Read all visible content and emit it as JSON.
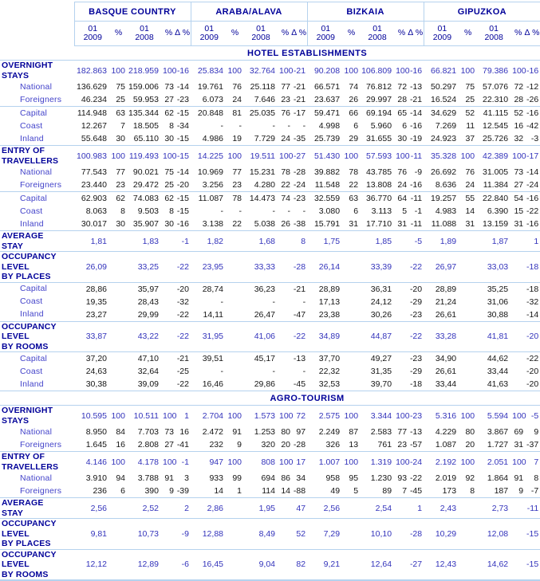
{
  "table": {
    "groups": [
      "BASQUE COUNTRY",
      "ARABA/ALAVA",
      "BIZKAIA",
      "GIPUZKOA"
    ],
    "period_cols": [
      "01\n2009",
      "%",
      "01\n2008",
      "%",
      "∆ %"
    ],
    "accent_colors": {
      "header_navy": "#000099",
      "section_blue": "#3333BB",
      "sublabel_blue": "#4343CA",
      "data_black": "#141414",
      "rule_light_blue": "#B5D2EE"
    },
    "rows": [
      {
        "type": "band",
        "label": "HOTEL ESTABLISHMENTS"
      },
      {
        "type": "sec",
        "label": "OVERNIGHT\nSTAYS",
        "values": [
          "182.863",
          "100",
          "218.959",
          "100",
          "-16",
          "25.834",
          "100",
          "32.764",
          "100",
          "-21",
          "90.208",
          "100",
          "106.809",
          "100",
          "-16",
          "66.821",
          "100",
          "79.386",
          "100",
          "-16"
        ]
      },
      {
        "type": "sub",
        "label": "National",
        "values": [
          "136.629",
          "75",
          "159.006",
          "73",
          "-14",
          "19.761",
          "76",
          "25.118",
          "77",
          "-21",
          "66.571",
          "74",
          "76.812",
          "72",
          "-13",
          "50.297",
          "75",
          "57.076",
          "72",
          "-12"
        ]
      },
      {
        "type": "sub",
        "label": "Foreigners",
        "sep": true,
        "values": [
          "46.234",
          "25",
          "59.953",
          "27",
          "-23",
          "6.073",
          "24",
          "7.646",
          "23",
          "-21",
          "23.637",
          "26",
          "29.997",
          "28",
          "-21",
          "16.524",
          "25",
          "22.310",
          "28",
          "-26"
        ]
      },
      {
        "type": "sub",
        "label": "Capital",
        "values": [
          "114.948",
          "63",
          "135.344",
          "62",
          "-15",
          "20.848",
          "81",
          "25.035",
          "76",
          "-17",
          "59.471",
          "66",
          "69.194",
          "65",
          "-14",
          "34.629",
          "52",
          "41.115",
          "52",
          "-16"
        ]
      },
      {
        "type": "sub",
        "label": "Coast",
        "values": [
          "12.267",
          "7",
          "18.505",
          "8",
          "-34",
          "-",
          "-",
          "-",
          "-",
          "-",
          "4.998",
          "6",
          "5.960",
          "6",
          "-16",
          "7.269",
          "11",
          "12.545",
          "16",
          "-42"
        ]
      },
      {
        "type": "sub",
        "label": "Inland",
        "sep": true,
        "values": [
          "55.648",
          "30",
          "65.110",
          "30",
          "-15",
          "4.986",
          "19",
          "7.729",
          "24",
          "-35",
          "25.739",
          "29",
          "31.655",
          "30",
          "-19",
          "24.923",
          "37",
          "25.726",
          "32",
          "-3"
        ]
      },
      {
        "type": "sec",
        "label": "ENTRY OF\nTRAVELLERS",
        "values": [
          "100.983",
          "100",
          "119.493",
          "100",
          "-15",
          "14.225",
          "100",
          "19.511",
          "100",
          "-27",
          "51.430",
          "100",
          "57.593",
          "100",
          "-11",
          "35.328",
          "100",
          "42.389",
          "100",
          "-17"
        ]
      },
      {
        "type": "sub",
        "label": "National",
        "values": [
          "77.543",
          "77",
          "90.021",
          "75",
          "-14",
          "10.969",
          "77",
          "15.231",
          "78",
          "-28",
          "39.882",
          "78",
          "43.785",
          "76",
          "-9",
          "26.692",
          "76",
          "31.005",
          "73",
          "-14"
        ]
      },
      {
        "type": "sub",
        "label": "Foreigners",
        "sep": true,
        "values": [
          "23.440",
          "23",
          "29.472",
          "25",
          "-20",
          "3.256",
          "23",
          "4.280",
          "22",
          "-24",
          "11.548",
          "22",
          "13.808",
          "24",
          "-16",
          "8.636",
          "24",
          "11.384",
          "27",
          "-24"
        ]
      },
      {
        "type": "sub",
        "label": "Capital",
        "values": [
          "62.903",
          "62",
          "74.083",
          "62",
          "-15",
          "11.087",
          "78",
          "14.473",
          "74",
          "-23",
          "32.559",
          "63",
          "36.770",
          "64",
          "-11",
          "19.257",
          "55",
          "22.840",
          "54",
          "-16"
        ]
      },
      {
        "type": "sub",
        "label": "Coast",
        "values": [
          "8.063",
          "8",
          "9.503",
          "8",
          "-15",
          "-",
          "-",
          "-",
          "-",
          "-",
          "3.080",
          "6",
          "3.113",
          "5",
          "-1",
          "4.983",
          "14",
          "6.390",
          "15",
          "-22"
        ]
      },
      {
        "type": "sub",
        "label": "Inland",
        "sep": true,
        "values": [
          "30.017",
          "30",
          "35.907",
          "30",
          "-16",
          "3.138",
          "22",
          "5.038",
          "26",
          "-38",
          "15.791",
          "31",
          "17.710",
          "31",
          "-11",
          "11.088",
          "31",
          "13.159",
          "31",
          "-16"
        ]
      },
      {
        "type": "sec",
        "label": "AVERAGE\nSTAY",
        "sep": true,
        "values": [
          "1,81",
          "",
          "1,83",
          "",
          "-1",
          "1,82",
          "",
          "1,68",
          "",
          "8",
          "1,75",
          "",
          "1,85",
          "",
          "-5",
          "1,89",
          "",
          "1,87",
          "",
          "1"
        ]
      },
      {
        "type": "sec",
        "label": "OCCUPANCY\nLEVEL\nBY PLACES",
        "sep": true,
        "values": [
          "26,09",
          "",
          "33,25",
          "",
          "-22",
          "23,95",
          "",
          "33,33",
          "",
          "-28",
          "26,14",
          "",
          "33,39",
          "",
          "-22",
          "26,97",
          "",
          "33,03",
          "",
          "-18"
        ]
      },
      {
        "type": "sub",
        "label": "Capital",
        "values": [
          "28,86",
          "",
          "35,97",
          "",
          "-20",
          "28,74",
          "",
          "36,23",
          "",
          "-21",
          "28,89",
          "",
          "36,31",
          "",
          "-20",
          "28,89",
          "",
          "35,25",
          "",
          "-18"
        ]
      },
      {
        "type": "sub",
        "label": "Coast",
        "values": [
          "19,35",
          "",
          "28,43",
          "",
          "-32",
          "-",
          "",
          "-",
          "",
          "-",
          "17,13",
          "",
          "24,12",
          "",
          "-29",
          "21,24",
          "",
          "31,06",
          "",
          "-32"
        ]
      },
      {
        "type": "sub",
        "label": "Inland",
        "sep": true,
        "values": [
          "23,27",
          "",
          "29,99",
          "",
          "-22",
          "14,11",
          "",
          "26,47",
          "",
          "-47",
          "23,38",
          "",
          "30,26",
          "",
          "-23",
          "26,61",
          "",
          "30,88",
          "",
          "-14"
        ]
      },
      {
        "type": "sec",
        "label": "OCCUPANCY\nLEVEL\nBY ROOMS",
        "sep": true,
        "values": [
          "33,87",
          "",
          "43,22",
          "",
          "-22",
          "31,95",
          "",
          "41,06",
          "",
          "-22",
          "34,89",
          "",
          "44,87",
          "",
          "-22",
          "33,28",
          "",
          "41,81",
          "",
          "-20"
        ]
      },
      {
        "type": "sub",
        "label": "Capital",
        "values": [
          "37,20",
          "",
          "47,10",
          "",
          "-21",
          "39,51",
          "",
          "45,17",
          "",
          "-13",
          "37,70",
          "",
          "49,27",
          "",
          "-23",
          "34,90",
          "",
          "44,62",
          "",
          "-22"
        ]
      },
      {
        "type": "sub",
        "label": "Coast",
        "values": [
          "24,63",
          "",
          "32,64",
          "",
          "-25",
          "-",
          "",
          "-",
          "",
          "-",
          "22,32",
          "",
          "31,35",
          "",
          "-29",
          "26,61",
          "",
          "33,44",
          "",
          "-20"
        ]
      },
      {
        "type": "sub",
        "label": "Inland",
        "sep": true,
        "values": [
          "30,38",
          "",
          "39,09",
          "",
          "-22",
          "16,46",
          "",
          "29,86",
          "",
          "-45",
          "32,53",
          "",
          "39,70",
          "",
          "-18",
          "33,44",
          "",
          "41,63",
          "",
          "-20"
        ]
      },
      {
        "type": "band",
        "label": "AGRO-TOURISM"
      },
      {
        "type": "sec",
        "label": "OVERNIGHT\nSTAYS",
        "values": [
          "10.595",
          "100",
          "10.511",
          "100",
          "1",
          "2.704",
          "100",
          "1.573",
          "100",
          "72",
          "2.575",
          "100",
          "3.344",
          "100",
          "-23",
          "5.316",
          "100",
          "5.594",
          "100",
          "-5"
        ]
      },
      {
        "type": "sub",
        "label": "National",
        "values": [
          "8.950",
          "84",
          "7.703",
          "73",
          "16",
          "2.472",
          "91",
          "1.253",
          "80",
          "97",
          "2.249",
          "87",
          "2.583",
          "77",
          "-13",
          "4.229",
          "80",
          "3.867",
          "69",
          "9"
        ]
      },
      {
        "type": "sub",
        "label": "Foreigners",
        "sep": true,
        "values": [
          "1.645",
          "16",
          "2.808",
          "27",
          "-41",
          "232",
          "9",
          "320",
          "20",
          "-28",
          "326",
          "13",
          "761",
          "23",
          "-57",
          "1.087",
          "20",
          "1.727",
          "31",
          "-37"
        ]
      },
      {
        "type": "sec",
        "label": "ENTRY OF\nTRAVELLERS",
        "values": [
          "4.146",
          "100",
          "4.178",
          "100",
          "-1",
          "947",
          "100",
          "808",
          "100",
          "17",
          "1.007",
          "100",
          "1.319",
          "100",
          "-24",
          "2.192",
          "100",
          "2.051",
          "100",
          "7"
        ]
      },
      {
        "type": "sub",
        "label": "National",
        "values": [
          "3.910",
          "94",
          "3.788",
          "91",
          "3",
          "933",
          "99",
          "694",
          "86",
          "34",
          "958",
          "95",
          "1.230",
          "93",
          "-22",
          "2.019",
          "92",
          "1.864",
          "91",
          "8"
        ]
      },
      {
        "type": "sub",
        "label": "Foreigners",
        "sep": true,
        "values": [
          "236",
          "6",
          "390",
          "9",
          "-39",
          "14",
          "1",
          "114",
          "14",
          "-88",
          "49",
          "5",
          "89",
          "7",
          "-45",
          "173",
          "8",
          "187",
          "9",
          "-7"
        ]
      },
      {
        "type": "sec",
        "label": "AVERAGE\nSTAY",
        "sep": true,
        "values": [
          "2,56",
          "",
          "2,52",
          "",
          "2",
          "2,86",
          "",
          "1,95",
          "",
          "47",
          "2,56",
          "",
          "2,54",
          "",
          "1",
          "2,43",
          "",
          "2,73",
          "",
          "-11"
        ]
      },
      {
        "type": "sec",
        "label": "OCCUPANCY\nLEVEL\nBY PLACES",
        "sep": true,
        "values": [
          "9,81",
          "",
          "10,73",
          "",
          "-9",
          "12,88",
          "",
          "8,49",
          "",
          "52",
          "7,29",
          "",
          "10,10",
          "",
          "-28",
          "10,29",
          "",
          "12,08",
          "",
          "-15"
        ]
      },
      {
        "type": "sec",
        "label": "OCCUPANCY\nLEVEL\nBY ROOMS",
        "sep2": true,
        "values": [
          "12,12",
          "",
          "12,89",
          "",
          "-6",
          "16,45",
          "",
          "9,04",
          "",
          "82",
          "9,21",
          "",
          "12,64",
          "",
          "-27",
          "12,43",
          "",
          "14,62",
          "",
          "-15"
        ]
      }
    ]
  }
}
